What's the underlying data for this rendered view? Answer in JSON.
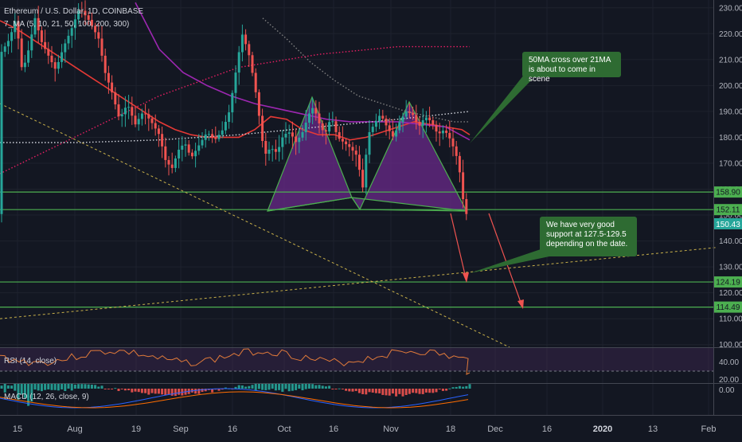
{
  "header": {
    "symbol": "Ethereum / U.S. Dollar, 1D, COINBASE",
    "ma_label": "7_MA (5, 10, 21, 50, 100, 200, 300)"
  },
  "annotations": {
    "crossover": "50MA cross over 21MA is about to come in scene",
    "support": "We have very good support at 127.5-129.5 depending on the date."
  },
  "rsi": {
    "label": "RSI (14, close)",
    "ticks": [
      "40.00",
      "20.00"
    ]
  },
  "macd": {
    "label": "MACD (12, 26, close, 9)",
    "tick": "0.00"
  },
  "colors": {
    "up": "#26a69a",
    "down": "#ef5350",
    "level": "#4caf50",
    "ma21": "#e53935",
    "ma50": "#9c27b0",
    "pattern": "#6a2a8a",
    "annotation": "#2e6b32",
    "background": "#131722"
  },
  "chart_data": {
    "type": "candlestick",
    "title": "Ethereum / U.S. Dollar, 1D, COINBASE",
    "x_ticks": [
      "15",
      "Aug",
      "19",
      "Sep",
      "16",
      "Oct",
      "16",
      "Nov",
      "18",
      "Dec",
      "16",
      "2020",
      "13",
      "Feb"
    ],
    "y_ticks": [
      100,
      110,
      120,
      130,
      140,
      150,
      160,
      170,
      180,
      190,
      200,
      210,
      220,
      230
    ],
    "ylim": [
      99,
      233
    ],
    "current_price": "150.43",
    "levels": [
      {
        "value": 158.9,
        "label": "158.90"
      },
      {
        "value": 152.11,
        "label": "152.11"
      },
      {
        "value": 124.19,
        "label": "124.19"
      },
      {
        "value": 114.49,
        "label": "114.49"
      }
    ],
    "moving_averages": [
      {
        "name": "MA21",
        "color": "#e53935",
        "style": "solid",
        "x": [
          0,
          20,
          40,
          60,
          80,
          100,
          120,
          140,
          160,
          180,
          200,
          220,
          240,
          260,
          280,
          300,
          320,
          340,
          360,
          380,
          400,
          420,
          440,
          460,
          480,
          500,
          520,
          540,
          560,
          580,
          590
        ],
        "y": [
          225,
          222,
          218,
          214,
          210,
          206,
          202,
          198,
          194,
          190,
          186,
          183,
          181,
          180,
          180,
          180,
          183,
          188,
          187,
          183,
          181,
          181,
          179,
          180,
          182,
          184,
          186,
          185,
          184,
          183,
          181
        ]
      },
      {
        "name": "MA50",
        "color": "#9c27b0",
        "style": "solid",
        "x": [
          170,
          200,
          230,
          260,
          290,
          320,
          350,
          380,
          410,
          440,
          470,
          500,
          530,
          560,
          590
        ],
        "y": [
          232,
          214,
          205,
          200,
          196,
          193,
          191,
          189,
          187,
          186,
          186,
          186,
          185,
          184,
          179
        ]
      },
      {
        "name": "MA100",
        "color": "#808080",
        "style": "dotted",
        "x": [
          330,
          360,
          390,
          420,
          450,
          480,
          510,
          540,
          570,
          590
        ],
        "y": [
          226,
          218,
          209,
          202,
          196,
          193,
          190,
          188,
          186,
          186
        ]
      },
      {
        "name": "MA200",
        "color": "#e91e63",
        "style": "dotted",
        "x": [
          0,
          100,
          200,
          300,
          400,
          500,
          590
        ],
        "y": [
          166,
          181,
          196,
          207,
          212,
          215,
          215
        ]
      },
      {
        "name": "MA300",
        "color": "#d1d4dc",
        "style": "dotted",
        "x": [
          0,
          100,
          200,
          300,
          400,
          500,
          590
        ],
        "y": [
          178,
          178,
          179,
          181,
          184,
          187,
          190
        ]
      }
    ],
    "trend_lines": [
      {
        "color": "#c8b04a",
        "x": [
          0,
          640
        ],
        "y": [
          193,
          99
        ]
      },
      {
        "color": "#c8b04a",
        "x": [
          0,
          900
        ],
        "y": [
          110,
          137.5
        ]
      }
    ]
  }
}
